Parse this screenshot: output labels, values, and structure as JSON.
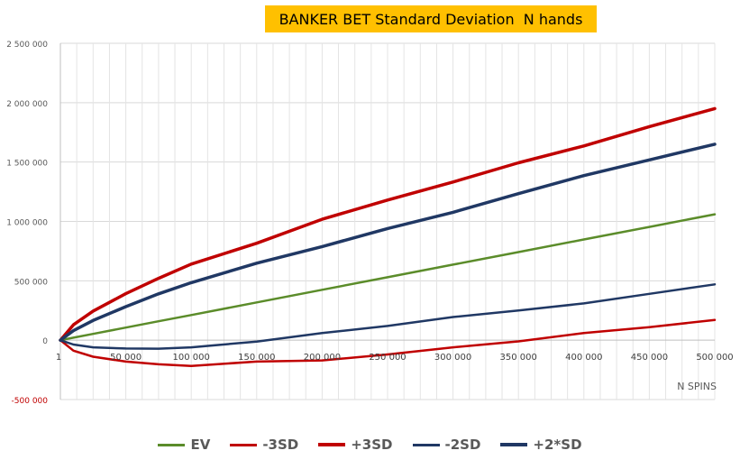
{
  "chart_data": {
    "type": "line",
    "title": "BANKER BET Standard Deviation  N hands",
    "xlabel": "N SPINS",
    "ylabel": "",
    "xlim": [
      1,
      500000
    ],
    "ylim": [
      -500000,
      2500000
    ],
    "x_ticks": [
      1,
      50000,
      100000,
      150000,
      200000,
      250000,
      300000,
      350000,
      400000,
      450000,
      500000
    ],
    "x_tick_labels": [
      "1",
      "50 000",
      "100 000",
      "150 000",
      "200 000",
      "250 000",
      "300 000",
      "350 000",
      "400 000",
      "450 000",
      "500 000"
    ],
    "y_ticks": [
      -500000,
      0,
      500000,
      1000000,
      1500000,
      2000000,
      2500000
    ],
    "y_tick_labels": [
      "-500 000",
      "0",
      "500 000",
      "1 000 000",
      "1 500 000",
      "2 000 000",
      "2 500 000"
    ],
    "grid": "vertical-and-horizontal",
    "legend_position": "bottom",
    "x": [
      1,
      10000,
      25000,
      50000,
      75000,
      100000,
      150000,
      200000,
      250000,
      300000,
      350000,
      400000,
      450000,
      500000
    ],
    "series": [
      {
        "name": "EV",
        "color": "#5B8C2A",
        "values": [
          0,
          21000,
          53000,
          106000,
          159000,
          212000,
          318000,
          424000,
          530000,
          636000,
          742000,
          848000,
          954000,
          1060000
        ]
      },
      {
        "name": "-3SD",
        "color": "#C00000",
        "values": [
          0,
          -88000,
          -139000,
          -180000,
          -203000,
          -217000,
          -180000,
          -170000,
          -120000,
          -60000,
          -10000,
          60000,
          110000,
          170000
        ]
      },
      {
        "name": "+3SD",
        "color": "#C00000",
        "values": [
          0,
          130000,
          245000,
          392000,
          521000,
          641000,
          816000,
          1018000,
          1180000,
          1332000,
          1494000,
          1636000,
          1798000,
          1950000
        ]
      },
      {
        "name": "-2SD",
        "color": "#203864",
        "values": [
          0,
          -37000,
          -60000,
          -70000,
          -72000,
          -60000,
          -12000,
          60000,
          120000,
          195000,
          250000,
          310000,
          390000,
          470000
        ]
      },
      {
        "name": "+2*SD",
        "color": "#203864",
        "values": [
          0,
          80000,
          166000,
          282000,
          390000,
          484000,
          648000,
          788000,
          940000,
          1077000,
          1234000,
          1386000,
          1518000,
          1650000
        ]
      }
    ]
  }
}
